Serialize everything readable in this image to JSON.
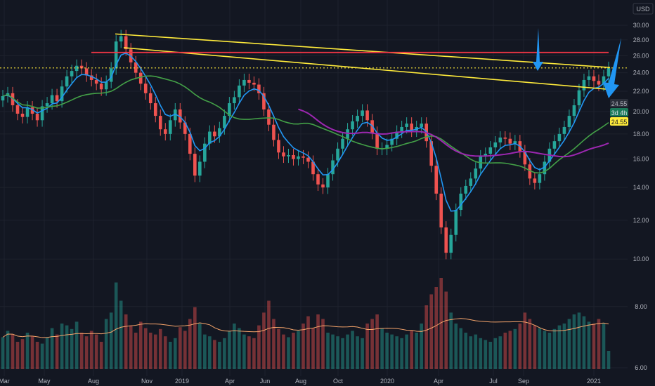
{
  "header": {
    "currency_label": "USD"
  },
  "price_readout": {
    "last_price": "24.55",
    "timeframe_badge": "3d 4h",
    "close_badge": "24.55"
  },
  "colors": {
    "background": "#131722",
    "up_candle": "#26a69a",
    "down_candle": "#ef5350",
    "ema_fast": "#2196f3",
    "sma_mid": "#43a047",
    "sma_slow": "#9c27b0",
    "volume_ma": "#f7a56b",
    "trendline": "#ffeb3b",
    "resistance": "#f23645",
    "arrow": "#2196f3"
  },
  "chart_data": {
    "type": "candlestick",
    "y_axis": {
      "scale": "log",
      "range": [
        6.0,
        31.0
      ],
      "ticks": [
        "30.00",
        "28.00",
        "26.00",
        "24.00",
        "22.00",
        "20.00",
        "18.00",
        "16.00",
        "14.00",
        "12.00",
        "10.00",
        "8.00",
        "6.00"
      ]
    },
    "x_axis": {
      "labels": [
        "Mar",
        "May",
        "Aug",
        "Nov",
        "2019",
        "Apr",
        "Jun",
        "Aug",
        "Oct",
        "2020",
        "Apr",
        "Jul",
        "Sep",
        "2021"
      ]
    },
    "grid": true,
    "candle_closes": [
      21.5,
      21.8,
      20.6,
      19.8,
      19.5,
      20.4,
      19.8,
      19.2,
      20.5,
      20.8,
      21.6,
      21.0,
      22.5,
      23.6,
      24.2,
      24.8,
      24.5,
      23.7,
      23.2,
      22.8,
      22.2,
      23.0,
      24.5,
      27.8,
      28.5,
      26.8,
      25.2,
      24.0,
      22.8,
      21.8,
      20.8,
      19.6,
      18.4,
      18.0,
      19.2,
      20.2,
      19.0,
      18.0,
      16.4,
      14.8,
      15.8,
      17.2,
      18.2,
      17.8,
      18.5,
      19.6,
      20.8,
      21.4,
      22.6,
      23.2,
      22.9,
      22.7,
      21.8,
      20.2,
      18.8,
      17.5,
      16.5,
      16.2,
      16.3,
      16.0,
      16.2,
      16.1,
      15.8,
      14.9,
      14.2,
      14.0,
      14.9,
      15.9,
      16.8,
      17.6,
      18.4,
      19.1,
      19.6,
      20.1,
      19.2,
      18.1,
      16.8,
      16.8,
      17.1,
      17.6,
      18.2,
      18.6,
      18.9,
      18.3,
      18.6,
      18.9,
      17.4,
      15.5,
      13.6,
      11.6,
      10.3,
      11.2,
      12.6,
      13.6,
      14.1,
      14.6,
      15.3,
      16.2,
      16.4,
      16.9,
      17.3,
      17.7,
      17.6,
      17.2,
      17.4,
      16.6,
      15.6,
      14.6,
      14.3,
      14.9,
      15.8,
      16.8,
      17.4,
      18.0,
      18.6,
      19.6,
      20.6,
      22.1,
      23.2,
      23.6,
      23.1,
      22.7,
      23.6,
      24.55
    ],
    "overlays": {
      "ema_fast": "blue moving average",
      "sma_mid": "green moving average",
      "sma_slow": "purple moving average"
    },
    "drawings": {
      "upper_trendline": {
        "start": [
          "Aug 2018",
          28.8
        ],
        "end": [
          "Jan 2021",
          24.6
        ]
      },
      "lower_trendline": {
        "start": [
          "Aug 2018",
          27.0
        ],
        "end": [
          "Jan 2021",
          22.2
        ]
      },
      "resistance_level": 26.4,
      "last_price_line": 24.55
    },
    "volume_panel": {
      "bars": [
        0.35,
        0.42,
        0.38,
        0.3,
        0.33,
        0.4,
        0.36,
        0.3,
        0.28,
        0.35,
        0.45,
        0.38,
        0.5,
        0.48,
        0.44,
        0.52,
        0.4,
        0.36,
        0.42,
        0.38,
        0.3,
        0.55,
        0.62,
        0.95,
        0.75,
        0.6,
        0.48,
        0.4,
        0.52,
        0.45,
        0.4,
        0.38,
        0.44,
        0.36,
        0.3,
        0.34,
        0.46,
        0.42,
        0.55,
        0.68,
        0.5,
        0.38,
        0.36,
        0.32,
        0.3,
        0.34,
        0.42,
        0.5,
        0.45,
        0.38,
        0.36,
        0.34,
        0.48,
        0.62,
        0.75,
        0.55,
        0.44,
        0.38,
        0.35,
        0.4,
        0.42,
        0.5,
        0.58,
        0.45,
        0.6,
        0.55,
        0.4,
        0.38,
        0.36,
        0.34,
        0.38,
        0.42,
        0.36,
        0.34,
        0.5,
        0.55,
        0.6,
        0.45,
        0.4,
        0.38,
        0.36,
        0.34,
        0.38,
        0.42,
        0.4,
        0.5,
        0.7,
        0.82,
        0.9,
        1.0,
        0.85,
        0.62,
        0.5,
        0.45,
        0.4,
        0.36,
        0.38,
        0.34,
        0.32,
        0.3,
        0.34,
        0.36,
        0.4,
        0.42,
        0.44,
        0.5,
        0.62,
        0.55,
        0.48,
        0.45,
        0.42,
        0.4,
        0.44,
        0.48,
        0.5,
        0.55,
        0.6,
        0.62,
        0.58,
        0.52,
        0.5,
        0.55,
        0.5,
        0.2
      ]
    }
  }
}
